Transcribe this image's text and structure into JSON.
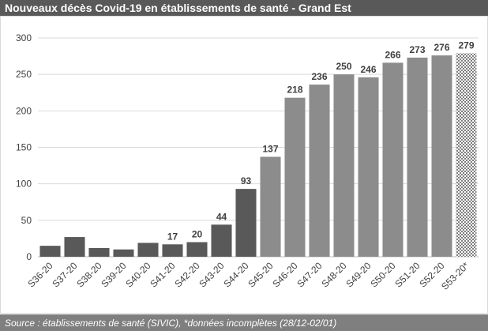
{
  "chart_data": {
    "type": "bar",
    "title": "Nouveaux décès Covid-19 en établissements de santé - Grand Est",
    "footer": "Source : établissements de santé (SIVIC), *données incomplètes (28/12-02/01)",
    "categories": [
      "S36-20",
      "S37-20",
      "S38-20",
      "S39-20",
      "S40-20",
      "S41-20",
      "S42-20",
      "S43-20",
      "S44-20",
      "S45-20",
      "S46-20",
      "S47-20",
      "S48-20",
      "S49-20",
      "S50-20",
      "S51-20",
      "S52-20",
      "S53-20*"
    ],
    "values": [
      15,
      27,
      12,
      10,
      19,
      17,
      20,
      44,
      93,
      137,
      218,
      236,
      250,
      246,
      266,
      273,
      276,
      279
    ],
    "value_labels": [
      null,
      null,
      null,
      null,
      null,
      "17",
      "20",
      "44",
      "93",
      "137",
      "218",
      "236",
      "250",
      "246",
      "266",
      "273",
      "276",
      "279"
    ],
    "colors": [
      "#595959",
      "#595959",
      "#595959",
      "#595959",
      "#595959",
      "#595959",
      "#595959",
      "#595959",
      "#595959",
      "#8c8c8c",
      "#8c8c8c",
      "#8c8c8c",
      "#8c8c8c",
      "#8c8c8c",
      "#8c8c8c",
      "#8c8c8c",
      "#8c8c8c",
      "#7f7f7f"
    ],
    "patterned_bars": [
      17
    ],
    "ylim": [
      0,
      300
    ],
    "yticks": [
      0,
      50,
      100,
      150,
      200,
      250,
      300
    ],
    "grid": true
  }
}
